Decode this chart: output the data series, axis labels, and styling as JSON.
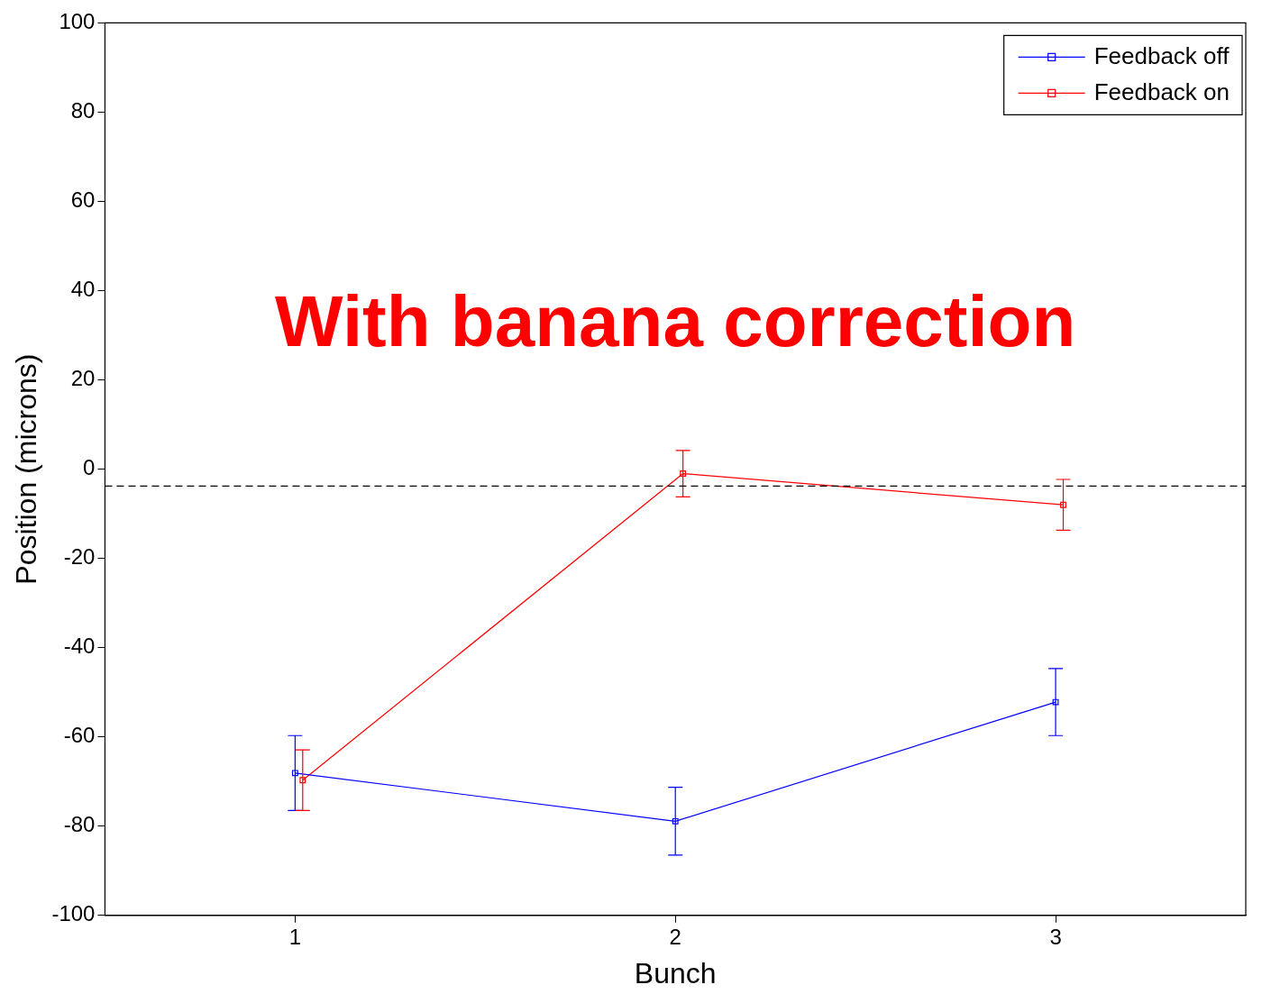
{
  "chart_data": {
    "type": "line",
    "xlabel": "Bunch",
    "ylabel": "Position (microns)",
    "xlim": [
      0.5,
      3.5
    ],
    "xticks": [
      1,
      2,
      3
    ],
    "ylim": [
      -100,
      100
    ],
    "yticks": [
      -100,
      -80,
      -60,
      -40,
      -20,
      0,
      20,
      40,
      60,
      80,
      100
    ],
    "grid": false,
    "legend": "top right",
    "marker": "square",
    "line_style": "solid",
    "annotations": [
      "With banana correction"
    ],
    "ref_lines": [
      {
        "axis": "y",
        "value": -3.8,
        "color": "#000000",
        "line_style": "dashed"
      }
    ],
    "series": [
      {
        "name": "Feedback off",
        "color": "#0000ff",
        "x": [
          1,
          2,
          3
        ],
        "values": [
          -68.1,
          -78.9,
          -52.2
        ],
        "errors": [
          8.4,
          7.6,
          7.5
        ]
      },
      {
        "name": "Feedback on",
        "color": "#ff0000",
        "x": [
          1.02,
          2.02,
          3.02
        ],
        "values": [
          -69.7,
          -1.0,
          -8.0
        ],
        "errors": [
          6.8,
          5.2,
          5.7
        ]
      }
    ]
  }
}
